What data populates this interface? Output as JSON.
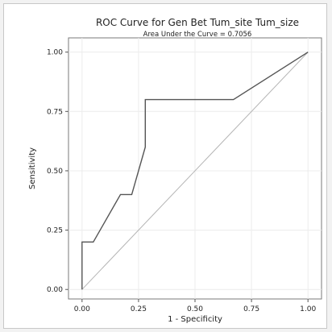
{
  "chart_data": {
    "type": "line",
    "title": "ROC Curve for Gen Bet Tum_site Tum_size",
    "subtitle": "Area Under the Curve = 0.7056",
    "xlabel": "1 - Specificity",
    "ylabel": "Sensitivity",
    "xlim": [
      -0.06,
      1.06
    ],
    "ylim": [
      -0.04,
      1.06
    ],
    "xticks": [
      "0.00",
      "0.25",
      "0.50",
      "0.75",
      "1.00"
    ],
    "yticks": [
      "0.00",
      "0.25",
      "0.50",
      "0.75",
      "1.00"
    ],
    "grid": true,
    "series": [
      {
        "x": [
          0.0,
          0.0,
          0.05,
          0.17,
          0.22,
          0.28,
          0.28,
          0.67,
          1.0
        ],
        "y": [
          0.0,
          0.2,
          0.2,
          0.4,
          0.4,
          0.6,
          0.8,
          0.8,
          1.0
        ],
        "color": "#555555"
      },
      {
        "x": [
          0.0,
          1.0
        ],
        "y": [
          0.0,
          1.0
        ],
        "color": "#b4b4b4"
      }
    ]
  }
}
